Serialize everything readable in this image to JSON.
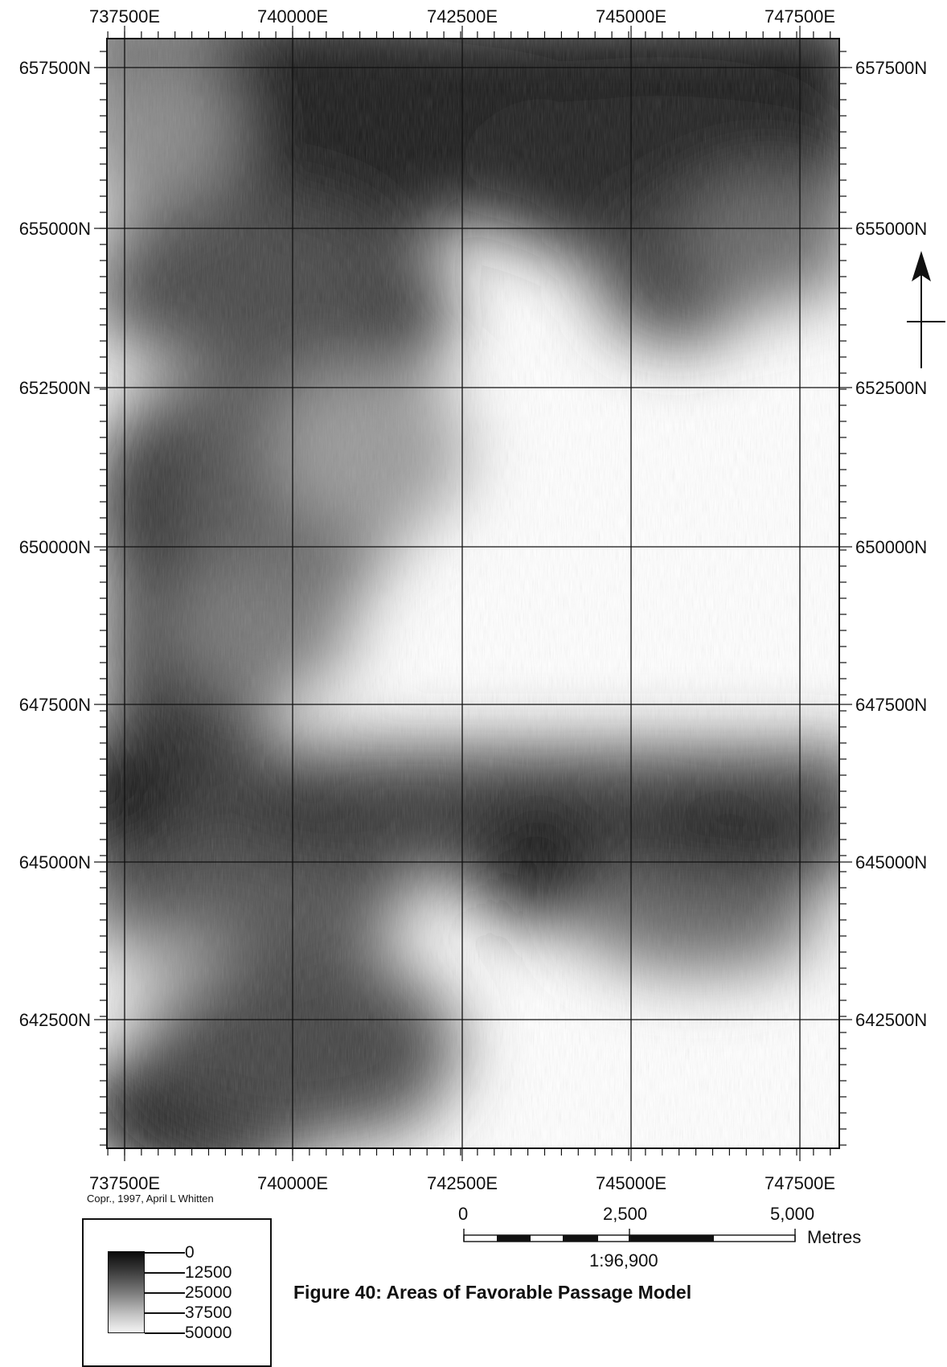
{
  "map": {
    "x_labels": [
      "737500E",
      "740000E",
      "742500E",
      "745000E",
      "747500E"
    ],
    "y_labels": [
      "657500N",
      "655000N",
      "652500N",
      "650000N",
      "647500N",
      "645000N",
      "642500N"
    ],
    "north_arrow": "north-arrow-icon"
  },
  "copyright": "Copr., 1997, April L Whitten",
  "legend": {
    "values": [
      "0",
      "12500",
      "25000",
      "37500",
      "50000"
    ],
    "ramp_colors": [
      "#0a0a0a",
      "#f4f4f4"
    ]
  },
  "scale_bar": {
    "labels": [
      "0",
      "2,500",
      "5,000"
    ],
    "units": "Metres",
    "ratio": "1:96,900"
  },
  "figure_title": "Figure 40:  Areas of Favorable Passage Model"
}
